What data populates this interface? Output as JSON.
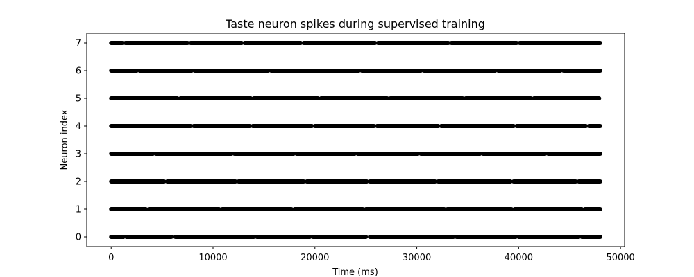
{
  "chart_data": {
    "type": "scatter",
    "title": "Taste neuron spikes during supervised training",
    "xlabel": "Time (ms)",
    "ylabel": "Neuron index",
    "xlim": [
      -2400,
      50400
    ],
    "ylim": [
      -0.35,
      7.35
    ],
    "xticks": [
      0,
      10000,
      20000,
      30000,
      40000,
      50000
    ],
    "yticks": [
      0,
      1,
      2,
      3,
      4,
      5,
      6,
      7
    ],
    "grid": false,
    "marker_color": "#000000",
    "series": [
      {
        "neuron": 0,
        "segments": [
          [
            0,
            1200
          ],
          [
            1500,
            5900
          ],
          [
            6300,
            14000
          ],
          [
            14300,
            19500
          ],
          [
            19800,
            25000
          ],
          [
            25400,
            33600
          ],
          [
            33900,
            39700
          ],
          [
            40000,
            45900
          ],
          [
            46200,
            48000
          ]
        ]
      },
      {
        "neuron": 1,
        "segments": [
          [
            0,
            3400
          ],
          [
            3700,
            10600
          ],
          [
            10900,
            17700
          ],
          [
            18000,
            24700
          ],
          [
            25000,
            32700
          ],
          [
            33000,
            39300
          ],
          [
            39600,
            46200
          ],
          [
            46500,
            48000
          ]
        ]
      },
      {
        "neuron": 2,
        "segments": [
          [
            0,
            5200
          ],
          [
            5500,
            12200
          ],
          [
            12500,
            18900
          ],
          [
            19200,
            25100
          ],
          [
            25400,
            31800
          ],
          [
            32100,
            39200
          ],
          [
            39500,
            45600
          ],
          [
            45900,
            48000
          ]
        ]
      },
      {
        "neuron": 3,
        "segments": [
          [
            0,
            4100
          ],
          [
            4400,
            11800
          ],
          [
            12100,
            17900
          ],
          [
            18200,
            23900
          ],
          [
            24200,
            30100
          ],
          [
            30400,
            36200
          ],
          [
            36500,
            42600
          ],
          [
            42900,
            48000
          ]
        ]
      },
      {
        "neuron": 4,
        "segments": [
          [
            0,
            7800
          ],
          [
            8100,
            13600
          ],
          [
            13900,
            19700
          ],
          [
            20000,
            25800
          ],
          [
            26100,
            32100
          ],
          [
            32400,
            39500
          ],
          [
            39800,
            46600
          ],
          [
            46900,
            48000
          ]
        ]
      },
      {
        "neuron": 5,
        "segments": [
          [
            0,
            6500
          ],
          [
            6800,
            13700
          ],
          [
            14000,
            20300
          ],
          [
            20600,
            27100
          ],
          [
            27400,
            34500
          ],
          [
            34800,
            41200
          ],
          [
            41500,
            47900
          ]
        ]
      },
      {
        "neuron": 6,
        "segments": [
          [
            0,
            2500
          ],
          [
            2800,
            7900
          ],
          [
            8200,
            15400
          ],
          [
            15700,
            24300
          ],
          [
            24600,
            30400
          ],
          [
            30700,
            37700
          ],
          [
            38000,
            44100
          ],
          [
            44400,
            48000
          ]
        ]
      },
      {
        "neuron": 7,
        "segments": [
          [
            0,
            1100
          ],
          [
            1400,
            7500
          ],
          [
            7800,
            12800
          ],
          [
            13100,
            18600
          ],
          [
            18900,
            25900
          ],
          [
            26200,
            33100
          ],
          [
            33400,
            39800
          ],
          [
            40100,
            48000
          ]
        ]
      }
    ]
  }
}
